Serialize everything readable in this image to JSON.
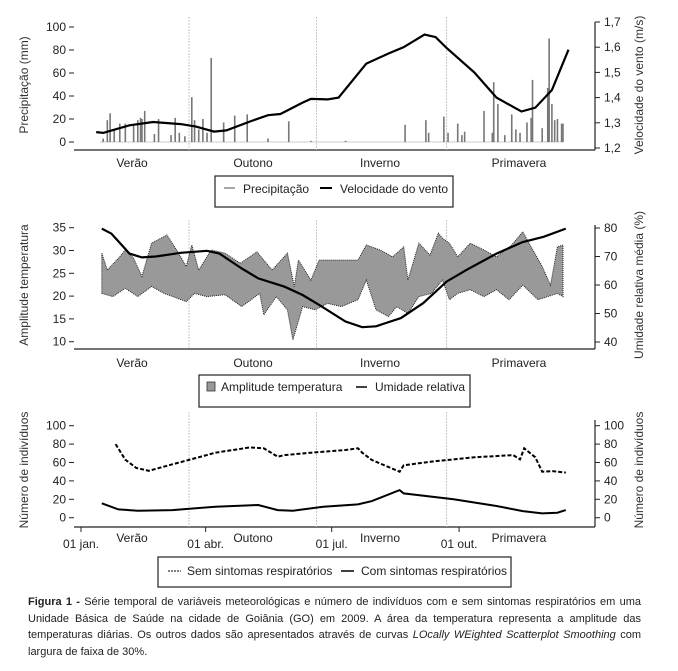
{
  "seasons": [
    "Verão",
    "Outono",
    "Inverno",
    "Primavera"
  ],
  "chart_data": [
    {
      "type": "bar+line",
      "xlabel": "",
      "ylabel": "Precipitação (mm)",
      "y2label": "Velocidade do vento (m/s)",
      "ylim": [
        0,
        100
      ],
      "y2lim": [
        1.2,
        1.7
      ],
      "yticks": [
        "0",
        "20",
        "40",
        "60",
        "80",
        "100"
      ],
      "y2ticks": [
        "1,2",
        "1,3",
        "1,4",
        "1,5",
        "1,6",
        "1,7"
      ],
      "legend": [
        "Precipitação",
        "Velocidade do vento"
      ],
      "legend_placement": "bottom",
      "precipitation_series": {
        "name": "Precipitação",
        "color": "#777777",
        "points": [
          [
            16,
            3
          ],
          [
            19,
            19
          ],
          [
            21,
            25
          ],
          [
            24,
            11
          ],
          [
            28,
            16
          ],
          [
            32,
            16
          ],
          [
            38,
            14
          ],
          [
            41,
            19
          ],
          [
            43,
            21
          ],
          [
            44,
            20
          ],
          [
            46,
            27
          ],
          [
            53,
            7
          ],
          [
            56,
            20
          ],
          [
            65,
            6
          ],
          [
            68,
            21
          ],
          [
            71,
            8
          ],
          [
            75,
            5
          ],
          [
            80,
            39
          ],
          [
            82,
            19
          ],
          [
            85,
            11
          ],
          [
            88,
            20
          ],
          [
            91,
            8
          ],
          [
            94,
            73
          ],
          [
            103,
            17
          ],
          [
            111,
            23
          ],
          [
            120,
            24
          ],
          [
            135,
            3
          ],
          [
            150,
            18
          ],
          [
            166,
            1
          ],
          [
            191,
            1
          ],
          [
            234,
            15
          ],
          [
            249,
            19
          ],
          [
            251,
            8
          ],
          [
            262,
            22
          ],
          [
            265,
            8
          ],
          [
            272,
            16
          ],
          [
            275,
            6
          ],
          [
            277,
            9
          ],
          [
            291,
            27
          ],
          [
            297,
            8
          ],
          [
            298,
            52
          ],
          [
            301,
            33
          ],
          [
            306,
            6
          ],
          [
            311,
            24
          ],
          [
            314,
            11
          ],
          [
            317,
            8
          ],
          [
            322,
            17
          ],
          [
            325,
            21
          ],
          [
            326,
            54
          ],
          [
            333,
            12
          ],
          [
            337,
            47
          ],
          [
            338,
            90
          ],
          [
            340,
            33
          ],
          [
            342,
            19
          ],
          [
            344,
            20
          ],
          [
            347,
            16
          ],
          [
            348,
            16
          ]
        ]
      },
      "wind_series": {
        "name": "Velocidade do vento",
        "color": "#000000",
        "points": [
          [
            11,
            1.263
          ],
          [
            16,
            1.26
          ],
          [
            35,
            1.29
          ],
          [
            52,
            1.303
          ],
          [
            72,
            1.295
          ],
          [
            83,
            1.285
          ],
          [
            96,
            1.265
          ],
          [
            105,
            1.27
          ],
          [
            122,
            1.305
          ],
          [
            135,
            1.33
          ],
          [
            144,
            1.335
          ],
          [
            160,
            1.38
          ],
          [
            166,
            1.395
          ],
          [
            178,
            1.393
          ],
          [
            186,
            1.4
          ],
          [
            206,
            1.535
          ],
          [
            222,
            1.575
          ],
          [
            233,
            1.6
          ],
          [
            248,
            1.65
          ],
          [
            256,
            1.64
          ],
          [
            264,
            1.597
          ],
          [
            284,
            1.5
          ],
          [
            300,
            1.4
          ],
          [
            318,
            1.345
          ],
          [
            328,
            1.36
          ],
          [
            340,
            1.43
          ],
          [
            352,
            1.59
          ]
        ]
      }
    },
    {
      "type": "area+line",
      "ylabel": "Amplitude temperatura",
      "y2label": "Umidade relativa média (%)",
      "ylim": [
        10,
        35
      ],
      "y2lim": [
        40,
        80
      ],
      "yticks": [
        "10",
        "15",
        "20",
        "25",
        "30",
        "35"
      ],
      "y2ticks": [
        "40",
        "50",
        "60",
        "70",
        "80"
      ],
      "legend": [
        "Amplitude temperatura",
        "Umidade relativa"
      ],
      "legend_placement": "bottom",
      "temperature_area": {
        "name": "Amplitude temperatura",
        "color": "#999999",
        "max": [
          [
            15,
            29.4
          ],
          [
            19,
            25.7
          ],
          [
            27,
            28.3
          ],
          [
            32,
            30.1
          ],
          [
            38,
            28.3
          ],
          [
            44,
            24.3
          ],
          [
            51,
            31.6
          ],
          [
            62,
            33.4
          ],
          [
            69,
            30.1
          ],
          [
            76,
            26.5
          ],
          [
            80,
            31.2
          ],
          [
            85,
            25.7
          ],
          [
            94,
            30.1
          ],
          [
            104,
            29.4
          ],
          [
            115,
            27.2
          ],
          [
            127,
            29.7
          ],
          [
            138,
            25.7
          ],
          [
            149,
            29.4
          ],
          [
            154,
            22.1
          ],
          [
            157,
            27.9
          ],
          [
            166,
            23.5
          ],
          [
            172,
            27.9
          ],
          [
            188,
            27.9
          ],
          [
            200,
            27.9
          ],
          [
            206,
            31.2
          ],
          [
            216,
            30.1
          ],
          [
            225,
            28.6
          ],
          [
            233,
            30.8
          ],
          [
            236,
            23.5
          ],
          [
            244,
            31.6
          ],
          [
            252,
            29
          ],
          [
            258,
            33.8
          ],
          [
            261,
            32.7
          ],
          [
            266,
            31.6
          ],
          [
            272,
            28.6
          ],
          [
            281,
            31.6
          ],
          [
            291,
            30.1
          ],
          [
            300,
            28.6
          ],
          [
            311,
            31.2
          ],
          [
            319,
            34.1
          ],
          [
            325,
            30.8
          ],
          [
            333,
            26.5
          ],
          [
            339,
            22.4
          ],
          [
            344,
            30.8
          ],
          [
            348,
            31.2
          ]
        ],
        "min": [
          [
            15,
            20.6
          ],
          [
            23,
            19.9
          ],
          [
            32,
            21.7
          ],
          [
            41,
            19.9
          ],
          [
            51,
            22.1
          ],
          [
            60,
            20.6
          ],
          [
            76,
            18.8
          ],
          [
            82,
            20.6
          ],
          [
            91,
            19.9
          ],
          [
            104,
            20.3
          ],
          [
            116,
            17.7
          ],
          [
            129,
            20.6
          ],
          [
            132,
            15.9
          ],
          [
            141,
            19.9
          ],
          [
            149,
            17
          ],
          [
            153,
            10.4
          ],
          [
            160,
            17.7
          ],
          [
            169,
            17
          ],
          [
            178,
            18.4
          ],
          [
            188,
            17.7
          ],
          [
            200,
            19.2
          ],
          [
            206,
            23.5
          ],
          [
            213,
            17
          ],
          [
            222,
            15.5
          ],
          [
            228,
            17.7
          ],
          [
            236,
            16.2
          ],
          [
            244,
            19.9
          ],
          [
            253,
            20.6
          ],
          [
            261,
            23.5
          ],
          [
            266,
            19.2
          ],
          [
            272,
            20.6
          ],
          [
            281,
            21.4
          ],
          [
            291,
            19.9
          ],
          [
            300,
            21.4
          ],
          [
            309,
            19.2
          ],
          [
            319,
            22.4
          ],
          [
            330,
            19.2
          ],
          [
            337,
            19.9
          ],
          [
            344,
            20.6
          ],
          [
            348,
            19.9
          ]
        ]
      },
      "humidity_series": {
        "name": "Umidade relativa",
        "color": "#000000",
        "points": [
          [
            15,
            79.8
          ],
          [
            22,
            78
          ],
          [
            35,
            71
          ],
          [
            44,
            69.7
          ],
          [
            54,
            70
          ],
          [
            72,
            71.3
          ],
          [
            91,
            72
          ],
          [
            100,
            71
          ],
          [
            116,
            65.8
          ],
          [
            128,
            62.3
          ],
          [
            147,
            59.4
          ],
          [
            160,
            56.5
          ],
          [
            172,
            53
          ],
          [
            191,
            47.2
          ],
          [
            203,
            45.2
          ],
          [
            213,
            45.5
          ],
          [
            231,
            48.4
          ],
          [
            247,
            53.6
          ],
          [
            264,
            61.2
          ],
          [
            278,
            65.2
          ],
          [
            300,
            71
          ],
          [
            319,
            75.1
          ],
          [
            334,
            76.9
          ],
          [
            350,
            79.8
          ]
        ]
      }
    },
    {
      "type": "line",
      "ylabel": "Número de indivíduos",
      "y2label": "Número de indivíduos",
      "ylim": [
        0,
        100
      ],
      "yticks": [
        "0",
        "20",
        "40",
        "60",
        "80",
        "100"
      ],
      "xticks": [
        "01 jan.",
        "01 abr.",
        "01 jul.",
        "01 out."
      ],
      "legend": [
        "Sem sintomas respiratórios",
        "Com sintomas respiratórios"
      ],
      "legend_placement": "bottom",
      "series": [
        {
          "name": "Sem sintomas respiratórios",
          "style": "dashed",
          "points": [
            [
              25,
              80
            ],
            [
              32,
              63
            ],
            [
              40,
              54
            ],
            [
              49,
              51
            ],
            [
              66,
              58
            ],
            [
              82,
              64.5
            ],
            [
              97,
              70.7
            ],
            [
              122,
              76.4
            ],
            [
              132,
              75.4
            ],
            [
              142,
              66.3
            ],
            [
              147,
              68
            ],
            [
              166,
              70.7
            ],
            [
              191,
              73.6
            ],
            [
              200,
              75.4
            ],
            [
              203,
              70.7
            ],
            [
              210,
              62.7
            ],
            [
              230,
              50
            ],
            [
              233,
              57
            ],
            [
              253,
              61
            ],
            [
              284,
              65.6
            ],
            [
              312,
              68
            ],
            [
              317,
              63.4
            ],
            [
              320,
              75.4
            ],
            [
              328,
              65.6
            ],
            [
              333,
              50
            ],
            [
              340,
              50.7
            ],
            [
              350,
              49
            ]
          ]
        },
        {
          "name": "Com sintomas respiratórios",
          "style": "solid",
          "points": [
            [
              15,
              15.6
            ],
            [
              27,
              9
            ],
            [
              41,
              7.6
            ],
            [
              66,
              8.3
            ],
            [
              97,
              12
            ],
            [
              128,
              13.8
            ],
            [
              142,
              8.3
            ],
            [
              153,
              7.6
            ],
            [
              175,
              12
            ],
            [
              200,
              14.5
            ],
            [
              210,
              18
            ],
            [
              230,
              30
            ],
            [
              233,
              26.4
            ],
            [
              269,
              20
            ],
            [
              300,
              12.7
            ],
            [
              319,
              7.2
            ],
            [
              333,
              4.7
            ],
            [
              344,
              5.4
            ],
            [
              350,
              8.3
            ]
          ]
        }
      ]
    }
  ],
  "caption": {
    "label": "Figura 1 -",
    "text1": " Série temporal de variáveis meteorológicas e número de indivíduos com e sem sintomas respiratórios em uma Unidade Básica de Saúde na cidade de Goiânia (GO) em 2009. A área da temperatura representa a amplitude das temperaturas diárias. Os outros dados são apresentados através de curvas ",
    "italic1": "LOcally WEighted",
    "space": " ",
    "italic2": "Scatterplot Smoothing",
    "text2": " com largura de faixa de 30%."
  }
}
